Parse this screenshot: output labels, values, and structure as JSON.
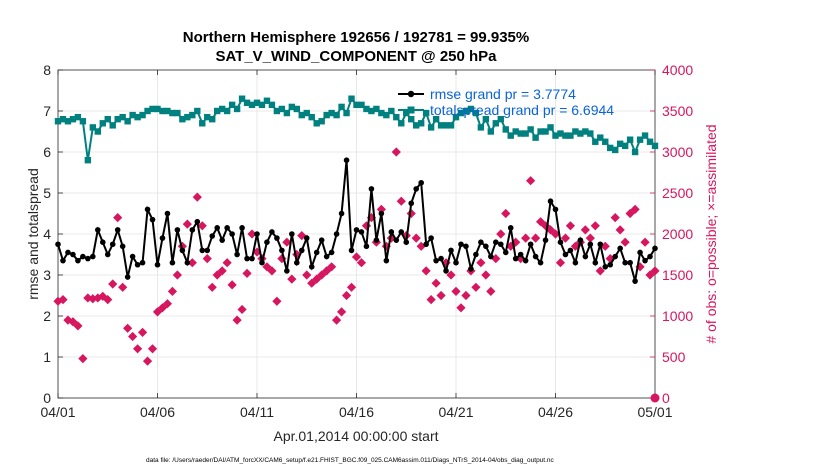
{
  "chart_data": {
    "type": "line",
    "title_line1": "Northern Hemisphere 192656 / 192781 = 99.935%",
    "title_line2": "SAT_V_WIND_COMPONENT @ 250 hPa",
    "xlabel": "Apr.01,2014 00:00:00 start",
    "ylabel": "rmse and totalspread",
    "ylabel_right": "# of obs: o=possible; ×=assimilated",
    "footnote": "data file: /Users/raeder/DAI/ATM_forcXX/CAM6_setup/f.e21.FHIST_BGC.f09_025.CAM6assim.011/Diags_NTrS_2014-04/obs_diag_output.nc",
    "x_ticks": [
      "04/01",
      "04/06",
      "04/11",
      "04/16",
      "04/21",
      "04/26",
      "05/01"
    ],
    "x_range_days": [
      0,
      30
    ],
    "ylim": [
      0,
      8
    ],
    "y_ticks": [
      "0",
      "1",
      "2",
      "3",
      "4",
      "5",
      "6",
      "7",
      "8"
    ],
    "ylim_right": [
      0,
      4000
    ],
    "y_ticks_right": [
      "0",
      "500",
      "1000",
      "1500",
      "2000",
      "2500",
      "3000",
      "3500",
      "4000"
    ],
    "grid": true,
    "legend": {
      "position": "top-right",
      "entries": [
        "rmse grand pr = 3.7774",
        "totalspread grand pr = 6.6944"
      ]
    },
    "colors": {
      "rmse": "#000000",
      "totalspread": "#00807f",
      "obs": "#d6175f",
      "legend_text": "#0a64d6"
    },
    "series": [
      {
        "name": "rmse",
        "x": [
          0.0,
          0.25,
          0.5,
          0.75,
          1.0,
          1.25,
          1.5,
          1.75,
          2.0,
          2.25,
          2.5,
          2.75,
          3.0,
          3.25,
          3.5,
          3.75,
          4.0,
          4.25,
          4.5,
          4.75,
          5.0,
          5.25,
          5.5,
          5.75,
          6.0,
          6.25,
          6.5,
          6.75,
          7.0,
          7.25,
          7.5,
          7.75,
          8.0,
          8.25,
          8.5,
          8.75,
          9.0,
          9.25,
          9.5,
          9.75,
          10.0,
          10.25,
          10.5,
          10.75,
          11.0,
          11.25,
          11.5,
          11.75,
          12.0,
          12.25,
          12.5,
          12.75,
          13.0,
          13.25,
          13.5,
          13.75,
          14.0,
          14.25,
          14.5,
          14.75,
          15.0,
          15.25,
          15.5,
          15.75,
          16.0,
          16.25,
          16.5,
          16.75,
          17.0,
          17.25,
          17.5,
          17.75,
          18.0,
          18.25,
          18.5,
          18.75,
          19.0,
          19.25,
          19.5,
          19.75,
          20.0,
          20.25,
          20.5,
          20.75,
          21.0,
          21.25,
          21.5,
          21.75,
          22.0,
          22.25,
          22.5,
          22.75,
          23.0,
          23.25,
          23.5,
          23.75,
          24.0,
          24.25,
          24.5,
          24.75,
          25.0,
          25.25,
          25.5,
          25.75,
          26.0,
          26.25,
          26.5,
          26.75,
          27.0,
          27.25,
          27.5,
          27.75,
          28.0,
          28.25,
          28.5,
          28.75,
          29.0,
          29.25,
          29.5,
          29.75,
          30.0
        ],
        "values": [
          3.75,
          3.35,
          3.55,
          3.5,
          3.35,
          3.45,
          3.4,
          3.45,
          4.1,
          3.8,
          3.5,
          3.75,
          4.1,
          3.7,
          2.95,
          3.45,
          3.25,
          3.3,
          4.6,
          4.35,
          3.25,
          3.9,
          4.5,
          3.3,
          4.1,
          3.6,
          3.3,
          4.1,
          4.3,
          3.6,
          3.6,
          3.95,
          4.15,
          3.85,
          4.15,
          4.0,
          3.5,
          4.15,
          3.4,
          3.4,
          4.0,
          3.3,
          3.8,
          4.05,
          3.9,
          3.6,
          3.1,
          4.0,
          3.3,
          3.6,
          3.9,
          3.2,
          3.55,
          3.85,
          3.45,
          3.55,
          4.0,
          4.5,
          5.8,
          3.6,
          4.1,
          4.05,
          3.7,
          5.1,
          3.85,
          4.5,
          3.35,
          4.05,
          3.85,
          4.05,
          3.8,
          4.75,
          5.1,
          5.25,
          3.75,
          3.9,
          3.35,
          3.4,
          3.1,
          3.6,
          3.3,
          3.75,
          3.7,
          3.15,
          3.5,
          3.8,
          3.7,
          3.45,
          3.8,
          3.75,
          3.55,
          4.15,
          3.4,
          3.5,
          3.35,
          3.75,
          3.45,
          3.3,
          3.85,
          4.8,
          4.6,
          3.8,
          3.5,
          3.6,
          3.3,
          3.85,
          3.45,
          3.75,
          3.3,
          3.75,
          3.2,
          3.25,
          3.45,
          3.65,
          3.3,
          3.3,
          2.85,
          3.55,
          3.35,
          3.45,
          3.65
        ]
      },
      {
        "name": "totalspread",
        "x": [
          0.0,
          0.25,
          0.5,
          0.75,
          1.0,
          1.25,
          1.5,
          1.75,
          2.0,
          2.25,
          2.5,
          2.75,
          3.0,
          3.25,
          3.5,
          3.75,
          4.0,
          4.25,
          4.5,
          4.75,
          5.0,
          5.25,
          5.5,
          5.75,
          6.0,
          6.25,
          6.5,
          6.75,
          7.0,
          7.25,
          7.5,
          7.75,
          8.0,
          8.25,
          8.5,
          8.75,
          9.0,
          9.25,
          9.5,
          9.75,
          10.0,
          10.25,
          10.5,
          10.75,
          11.0,
          11.25,
          11.5,
          11.75,
          12.0,
          12.25,
          12.5,
          12.75,
          13.0,
          13.25,
          13.5,
          13.75,
          14.0,
          14.25,
          14.5,
          14.75,
          15.0,
          15.25,
          15.5,
          15.75,
          16.0,
          16.25,
          16.5,
          16.75,
          17.0,
          17.25,
          17.5,
          17.75,
          18.0,
          18.25,
          18.5,
          18.75,
          19.0,
          19.25,
          19.5,
          19.75,
          20.0,
          20.25,
          20.5,
          20.75,
          21.0,
          21.25,
          21.5,
          21.75,
          22.0,
          22.25,
          22.5,
          22.75,
          23.0,
          23.25,
          23.5,
          23.75,
          24.0,
          24.25,
          24.5,
          24.75,
          25.0,
          25.25,
          25.5,
          25.75,
          26.0,
          26.25,
          26.5,
          26.75,
          27.0,
          27.25,
          27.5,
          27.75,
          28.0,
          28.25,
          28.5,
          28.75,
          29.0,
          29.25,
          29.5,
          29.75,
          30.0
        ],
        "values": [
          6.75,
          6.8,
          6.75,
          6.8,
          6.85,
          6.75,
          5.8,
          6.6,
          6.5,
          6.7,
          6.8,
          6.65,
          6.8,
          6.85,
          6.75,
          6.9,
          6.85,
          6.9,
          7.0,
          7.05,
          7.05,
          7.0,
          7.0,
          6.95,
          6.95,
          6.8,
          6.85,
          6.9,
          7.0,
          6.7,
          6.85,
          6.8,
          7.0,
          7.05,
          7.0,
          7.15,
          7.05,
          7.3,
          7.2,
          7.15,
          7.2,
          7.15,
          7.25,
          7.15,
          7.0,
          7.05,
          6.95,
          7.1,
          7.05,
          6.9,
          6.95,
          6.85,
          6.7,
          6.75,
          6.9,
          6.95,
          6.9,
          7.1,
          6.95,
          7.3,
          7.15,
          7.15,
          7.05,
          7.0,
          7.05,
          6.95,
          6.9,
          7.0,
          6.85,
          6.7,
          6.95,
          6.8,
          6.65,
          6.7,
          6.95,
          6.6,
          6.8,
          6.65,
          6.65,
          6.65,
          6.85,
          6.95,
          7.0,
          7.05,
          6.95,
          6.6,
          6.8,
          6.5,
          6.7,
          6.8,
          6.55,
          6.4,
          6.5,
          6.45,
          6.45,
          6.55,
          6.35,
          6.5,
          6.5,
          6.6,
          6.4,
          6.45,
          6.4,
          6.4,
          6.5,
          6.45,
          6.5,
          6.45,
          6.25,
          6.35,
          6.25,
          6.1,
          6.05,
          6.2,
          6.15,
          6.3,
          6.0,
          6.3,
          6.4,
          6.25,
          6.15
        ]
      },
      {
        "name": "obs_assimilated",
        "axis": "right",
        "x": [
          0.0,
          0.25,
          0.5,
          0.75,
          1.0,
          1.25,
          1.5,
          1.75,
          2.0,
          2.25,
          2.5,
          2.75,
          3.0,
          3.25,
          3.5,
          3.75,
          4.0,
          4.25,
          4.5,
          4.75,
          5.0,
          5.25,
          5.5,
          5.75,
          6.0,
          6.25,
          6.5,
          6.75,
          7.0,
          7.25,
          7.5,
          7.75,
          8.0,
          8.25,
          8.5,
          8.75,
          9.0,
          9.25,
          9.5,
          9.75,
          10.0,
          10.25,
          10.5,
          10.75,
          11.0,
          11.25,
          11.5,
          11.75,
          12.0,
          12.25,
          12.5,
          12.75,
          13.0,
          13.25,
          13.5,
          13.75,
          14.0,
          14.25,
          14.5,
          14.75,
          15.0,
          15.25,
          15.5,
          15.75,
          16.0,
          16.25,
          16.5,
          16.75,
          17.0,
          17.25,
          17.5,
          17.75,
          18.0,
          18.25,
          18.5,
          18.75,
          19.0,
          19.25,
          19.5,
          19.75,
          20.0,
          20.25,
          20.5,
          20.75,
          21.0,
          21.25,
          21.5,
          21.75,
          22.0,
          22.25,
          22.5,
          22.75,
          23.0,
          23.25,
          23.5,
          23.75,
          24.0,
          24.25,
          24.5,
          24.75,
          25.0,
          25.25,
          25.5,
          25.75,
          26.0,
          26.25,
          26.5,
          26.75,
          27.0,
          27.25,
          27.5,
          27.75,
          28.0,
          28.25,
          28.5,
          28.75,
          29.0,
          29.25,
          29.5,
          29.75,
          30.0
        ],
        "values": [
          1180,
          1200,
          950,
          930,
          880,
          480,
          1220,
          1210,
          1220,
          1240,
          1200,
          1390,
          2200,
          1350,
          850,
          750,
          600,
          800,
          450,
          600,
          1050,
          1100,
          1150,
          1300,
          1500,
          1850,
          2120,
          1650,
          2450,
          2100,
          1700,
          1350,
          1500,
          1550,
          1650,
          1380,
          950,
          1080,
          1520,
          2000,
          1780,
          1700,
          1600,
          1550,
          1180,
          1700,
          1900,
          1450,
          1750,
          1980,
          1500,
          1400,
          1450,
          1500,
          1550,
          1600,
          950,
          1050,
          1250,
          1350,
          1720,
          1650,
          2100,
          2200,
          1900,
          2300,
          1850,
          1950,
          3000,
          2400,
          1980,
          2250,
          1950,
          1850,
          1550,
          1200,
          1400,
          1250,
          1650,
          1500,
          1300,
          1100,
          1250,
          1550,
          1350,
          1650,
          1500,
          1300,
          1700,
          2000,
          2250,
          1850,
          1900,
          1700,
          1950,
          2650,
          1950,
          2150,
          2100,
          2050,
          2000,
          1650,
          1950,
          2100,
          1850,
          1900,
          2050,
          1950,
          2100,
          1550,
          1850,
          1700,
          2200,
          2050,
          1900,
          2250,
          2300,
          1600,
          1900,
          1500,
          1550
        ]
      }
    ]
  }
}
